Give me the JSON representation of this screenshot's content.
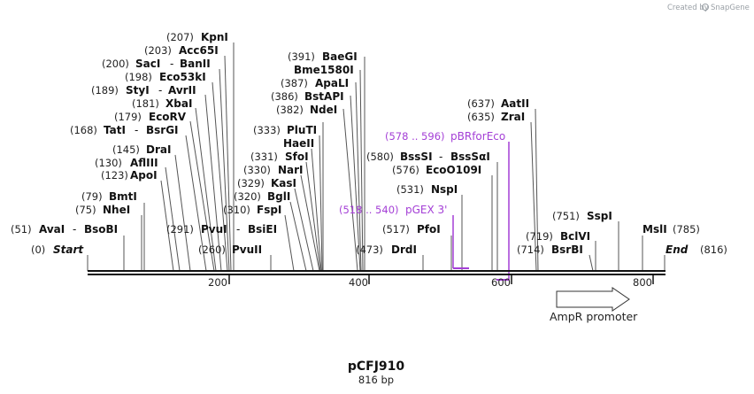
{
  "credit": {
    "text": "Created by",
    "brand": "SnapGene"
  },
  "title": "pCFJ910",
  "subtitle": "816 bp",
  "features": {
    "ampr": {
      "label": "AmpR promoter"
    }
  },
  "primers": [
    {
      "range": "(518 .. 540)",
      "name": "pGEX 3'"
    },
    {
      "range": "(578 .. 596)",
      "name": "pBRforEco"
    }
  ],
  "ticks": [
    "200",
    "400",
    "600",
    "800"
  ],
  "sites": [
    {
      "pos": "(0)",
      "name": "Start"
    },
    {
      "pos": "(51)",
      "name": "AvaI",
      "alt": "BsoBI"
    },
    {
      "pos": "(75)",
      "name": "NheI"
    },
    {
      "pos": "(79)",
      "name": "BmtI"
    },
    {
      "pos": "(123)",
      "name": "ApoI"
    },
    {
      "pos": "(130)",
      "name": "AflIII"
    },
    {
      "pos": "(145)",
      "name": "DraI"
    },
    {
      "pos": "(168)",
      "name": "TatI",
      "alt": "BsrGI"
    },
    {
      "pos": "(179)",
      "name": "EcoRV"
    },
    {
      "pos": "(181)",
      "name": "XbaI"
    },
    {
      "pos": "(189)",
      "name": "StyI",
      "alt": "AvrII"
    },
    {
      "pos": "(198)",
      "name": "Eco53kI"
    },
    {
      "pos": "(200)",
      "name": "SacI",
      "alt": "BanII"
    },
    {
      "pos": "(203)",
      "name": "Acc65I"
    },
    {
      "pos": "(207)",
      "name": "KpnI"
    },
    {
      "pos": "(260)",
      "name": "PvuII"
    },
    {
      "pos": "(291)",
      "name": "PvuI",
      "alt": "BsiEI"
    },
    {
      "pos": "(310)",
      "name": "FspI"
    },
    {
      "pos": "(320)",
      "name": "BglI"
    },
    {
      "pos": "(329)",
      "name": "KasI"
    },
    {
      "pos": "(330)",
      "name": "NarI"
    },
    {
      "pos": "(331)",
      "name": "SfoI"
    },
    {
      "pos": "",
      "name": "HaeII"
    },
    {
      "pos": "(333)",
      "name": "PluTI"
    },
    {
      "pos": "(382)",
      "name": "NdeI"
    },
    {
      "pos": "(386)",
      "name": "BstAPI"
    },
    {
      "pos": "(387)",
      "name": "ApaLI"
    },
    {
      "pos": "",
      "name": "Bme1580I"
    },
    {
      "pos": "(391)",
      "name": "BaeGI"
    },
    {
      "pos": "(473)",
      "name": "DrdI"
    },
    {
      "pos": "(517)",
      "name": "PfoI"
    },
    {
      "pos": "(531)",
      "name": "NspI"
    },
    {
      "pos": "(576)",
      "name": "EcoO109I"
    },
    {
      "pos": "(580)",
      "name": "BssSI",
      "alt": "BssSαI"
    },
    {
      "pos": "(635)",
      "name": "ZraI"
    },
    {
      "pos": "(637)",
      "name": "AatII"
    },
    {
      "pos": "(714)",
      "name": "BsrBI"
    },
    {
      "pos": "(719)",
      "name": "BclVI"
    },
    {
      "pos": "(751)",
      "name": "SspI"
    },
    {
      "pos": "(785)",
      "name": "MslI"
    },
    {
      "pos": "(816)",
      "name": "End"
    }
  ]
}
